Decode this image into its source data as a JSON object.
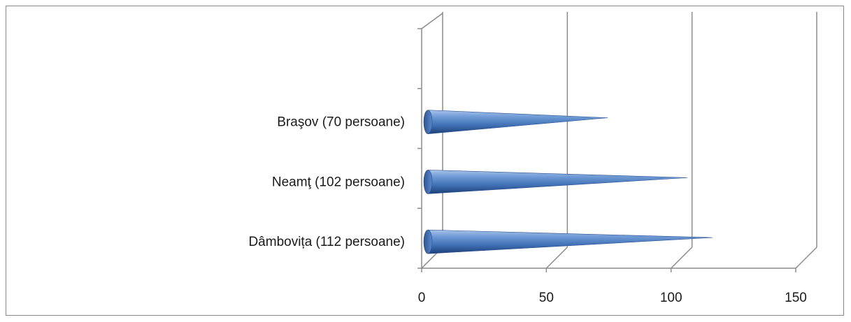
{
  "chart_data": {
    "type": "bar",
    "orientation": "horizontal",
    "style": "3d-cone",
    "title": "",
    "xlabel": "",
    "ylabel": "",
    "categories": [
      "Dâmbovița  (112 persoane)",
      "Neamţ  (102 persoane)",
      "Braşov  (70 persoane)"
    ],
    "values": [
      112,
      102,
      70
    ],
    "xlim": [
      0,
      150
    ],
    "x_ticks": [
      "0",
      "50",
      "100",
      "150"
    ],
    "grid": true,
    "legend": "none",
    "series_color": "#4f81bd",
    "category_slots": 4
  }
}
